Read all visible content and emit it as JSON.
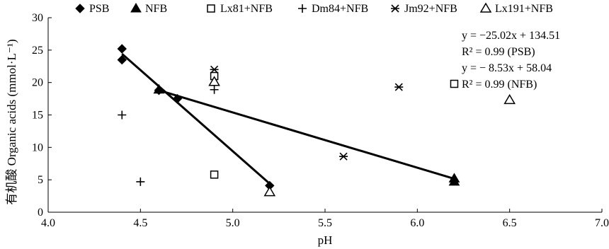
{
  "chart_data": {
    "type": "scatter",
    "title": "",
    "xlabel": "pH",
    "ylabel": "有机酸 Organic acids (mmol·L⁻¹)",
    "xlim": [
      4.0,
      7.0
    ],
    "ylim": [
      0,
      30
    ],
    "x_ticks": [
      "4.0",
      "4.5",
      "5.0",
      "5.5",
      "6.0",
      "6.5",
      "7.0"
    ],
    "y_ticks": [
      "0",
      "5",
      "10",
      "15",
      "20",
      "25",
      "30"
    ],
    "grid": false,
    "legend_position": "top",
    "series": [
      {
        "name": "PSB",
        "marker": "diamond",
        "points": [
          [
            4.4,
            25.2
          ],
          [
            4.4,
            23.5
          ],
          [
            4.6,
            18.8
          ],
          [
            4.7,
            17.5
          ],
          [
            5.2,
            4.1
          ]
        ]
      },
      {
        "name": "NFB",
        "marker": "triangle",
        "points": [
          [
            4.6,
            18.9
          ],
          [
            6.2,
            5.2
          ],
          [
            6.2,
            4.7
          ]
        ]
      },
      {
        "name": "Lx81+NFB",
        "marker": "square-open",
        "points": [
          [
            4.9,
            21.0
          ],
          [
            4.9,
            5.8
          ],
          [
            6.2,
            19.8
          ]
        ]
      },
      {
        "name": "Dm84+NFB",
        "marker": "plus",
        "points": [
          [
            4.4,
            15.0
          ],
          [
            4.5,
            4.7
          ],
          [
            4.9,
            18.9
          ]
        ]
      },
      {
        "name": "Jm92+NFB",
        "marker": "asterisk",
        "points": [
          [
            4.9,
            22.0
          ],
          [
            5.6,
            8.6
          ],
          [
            5.9,
            19.3
          ]
        ]
      },
      {
        "name": "Lx191+NFB",
        "marker": "triangle-open",
        "points": [
          [
            4.9,
            20.1
          ],
          [
            5.2,
            3.1
          ],
          [
            6.5,
            17.3
          ]
        ]
      }
    ],
    "fit_lines": [
      {
        "series": "PSB",
        "x_range": [
          4.4,
          5.2
        ],
        "slope": -25.02,
        "intercept": 134.51
      },
      {
        "series": "NFB",
        "x_range": [
          4.6,
          6.2
        ],
        "slope": -8.53,
        "intercept": 58.04
      }
    ],
    "annotations": [
      {
        "id": "eq1",
        "text": "y = −25.02x + 134.51"
      },
      {
        "id": "r1",
        "text": "R² = 0.99 (PSB)"
      },
      {
        "id": "eq2",
        "text": "y = − 8.53x + 58.04"
      },
      {
        "id": "r2",
        "text": "R² = 0.99 (NFB)"
      }
    ]
  }
}
